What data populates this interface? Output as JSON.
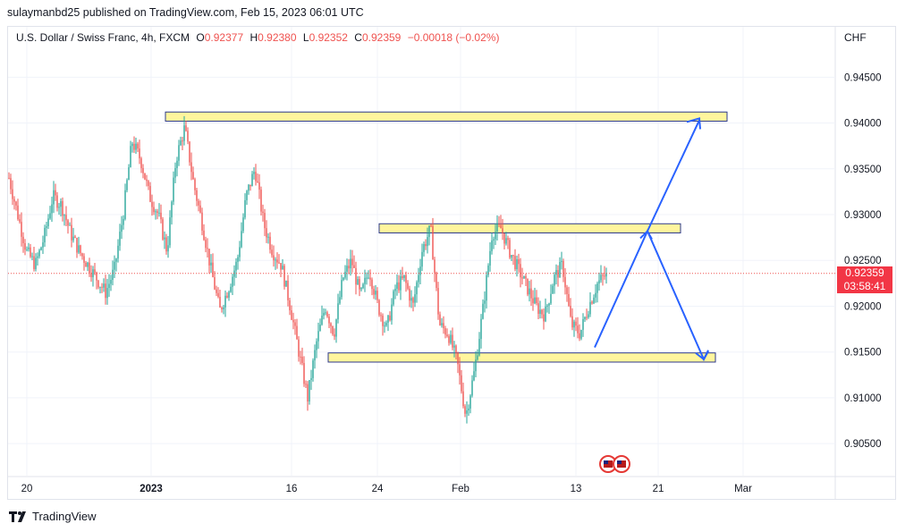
{
  "header": {
    "credit": "sulaymanbd25 published on TradingView.com, Feb 15, 2023 06:01 UTC"
  },
  "legend": {
    "symbol": "U.S. Dollar / Swiss Franc, 4h, FXCM",
    "o_label": "O",
    "o_value": "0.92377",
    "h_label": "H",
    "h_value": "0.92380",
    "l_label": "L",
    "l_value": "0.92352",
    "c_label": "C",
    "c_value": "0.92359",
    "change": "−0.00018 (−0.02%)"
  },
  "price_axis": {
    "currency": "CHF"
  },
  "last_price": {
    "price": "0.92359",
    "countdown": "03:58:41",
    "value": 0.92359
  },
  "footer": {
    "brand": "TradingView"
  },
  "colors": {
    "up": "#26a69a",
    "down": "#ef5350",
    "zone_fill": "#fff59d",
    "zone_border": "#2e3a8c",
    "arrow": "#2962ff",
    "price_line": "#ef5350",
    "grid": "#f0f3fa"
  },
  "chart_data": {
    "type": "candlestick",
    "title": "U.S. Dollar / Swiss Franc, 4h, FXCM",
    "y_ticks": [
      "0.94500",
      "0.94000",
      "0.93500",
      "0.93000",
      "0.92500",
      "0.92000",
      "0.91500",
      "0.91000",
      "0.90500"
    ],
    "y_tick_values": [
      0.945,
      0.94,
      0.935,
      0.93,
      0.925,
      0.92,
      0.915,
      0.91,
      0.905
    ],
    "x_ticks": [
      "20",
      "2023",
      "16",
      "24",
      "Feb",
      "13",
      "21",
      "Mar"
    ],
    "x_tick_bold": [
      false,
      true,
      false,
      false,
      false,
      false,
      false,
      false
    ],
    "ylim": [
      0.9015,
      0.9505
    ],
    "grid": true,
    "close_path": [
      0.934,
      0.93,
      0.926,
      0.9245,
      0.9275,
      0.932,
      0.931,
      0.928,
      0.926,
      0.9245,
      0.923,
      0.9215,
      0.924,
      0.93,
      0.938,
      0.936,
      0.932,
      0.93,
      0.926,
      0.936,
      0.9395,
      0.9335,
      0.929,
      0.924,
      0.9195,
      0.922,
      0.925,
      0.932,
      0.935,
      0.929,
      0.926,
      0.9245,
      0.92,
      0.915,
      0.91,
      0.916,
      0.92,
      0.917,
      0.923,
      0.925,
      0.921,
      0.924,
      0.92,
      0.9175,
      0.922,
      0.923,
      0.92,
      0.926,
      0.9285,
      0.918,
      0.917,
      0.914,
      0.908,
      0.913,
      0.92,
      0.928,
      0.9285,
      0.926,
      0.924,
      0.922,
      0.92,
      0.919,
      0.923,
      0.9245,
      0.918,
      0.917,
      0.92,
      0.9225,
      0.9235
    ],
    "zones": [
      {
        "low": 0.9402,
        "high": 0.9412,
        "from": "start",
        "to": "extended"
      },
      {
        "low": 0.928,
        "high": 0.929,
        "from": "Jan 24",
        "to": "extended"
      },
      {
        "low": 0.9139,
        "high": 0.9149,
        "from": "Jan 19",
        "to": "extended"
      }
    ],
    "projection": [
      0.9155,
      0.9282,
      0.9142,
      0.9152
    ],
    "projection_target": 0.9405
  }
}
